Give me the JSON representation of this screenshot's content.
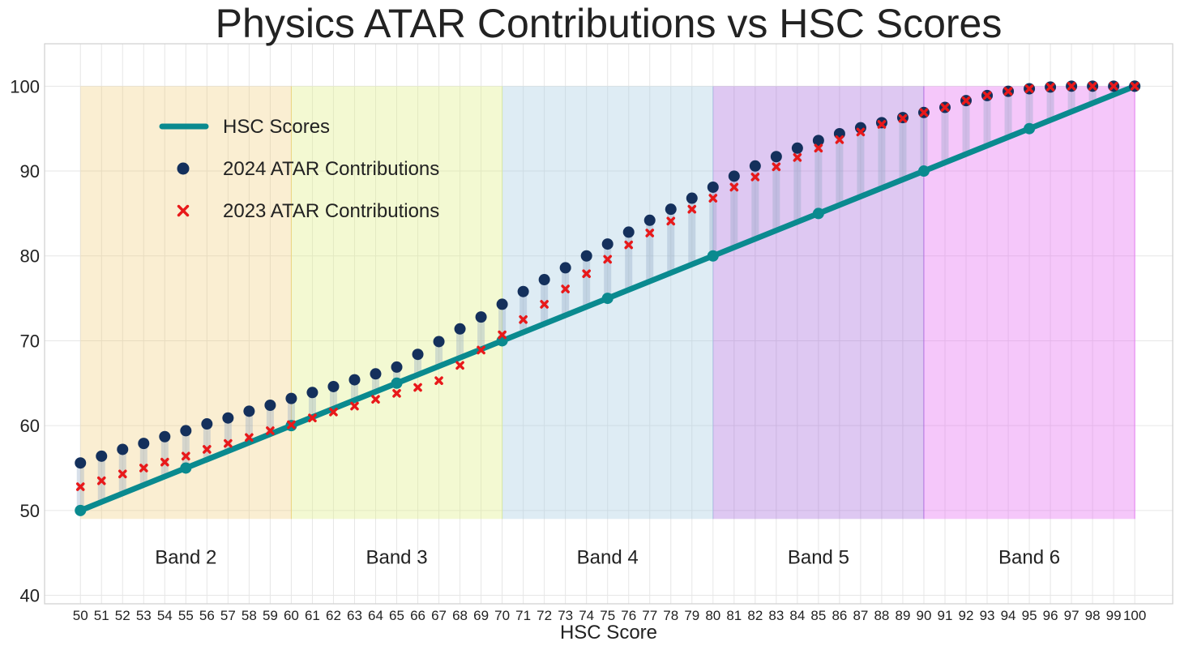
{
  "chart_data": {
    "type": "scatter",
    "title": "Physics ATAR Contributions vs HSC Scores",
    "xlabel": "HSC Score",
    "ylabel": "",
    "xlim": [
      48.3,
      101.8
    ],
    "ylim": [
      39,
      105
    ],
    "x_ticks": [
      50,
      51,
      52,
      53,
      54,
      55,
      56,
      57,
      58,
      59,
      60,
      61,
      62,
      63,
      64,
      65,
      66,
      67,
      68,
      69,
      70,
      71,
      72,
      73,
      74,
      75,
      76,
      77,
      78,
      79,
      80,
      81,
      82,
      83,
      84,
      85,
      86,
      87,
      88,
      89,
      90,
      91,
      92,
      93,
      94,
      95,
      96,
      97,
      98,
      99,
      100
    ],
    "y_ticks": [
      40,
      50,
      60,
      70,
      80,
      90,
      100
    ],
    "grid": true,
    "legend_position": "upper-left",
    "bands": [
      {
        "label": "Band 2",
        "from": 50,
        "to": 60,
        "color": "#f0c869",
        "opacity": 0.3
      },
      {
        "label": "Band 3",
        "from": 60,
        "to": 70,
        "color": "#e0f08a",
        "opacity": 0.38
      },
      {
        "label": "Band 4",
        "from": 70,
        "to": 80,
        "color": "#a8cce3",
        "opacity": 0.38
      },
      {
        "label": "Band 5",
        "from": 80,
        "to": 90,
        "color": "#9b59d9",
        "opacity": 0.33
      },
      {
        "label": "Band 6",
        "from": 90,
        "to": 100,
        "color": "#e66cf2",
        "opacity": 0.38
      }
    ],
    "band_ylim": [
      49,
      100
    ],
    "band_label_y": 44.5,
    "series": [
      {
        "name": "HSC Scores",
        "type": "line",
        "color": "#0a8a8f",
        "x": [
          50,
          100
        ],
        "y": [
          50,
          100
        ],
        "markers_x": [
          50,
          55,
          60,
          65,
          70,
          75,
          80,
          85,
          90,
          95,
          100
        ],
        "markers_y": [
          50,
          55,
          60,
          65,
          70,
          75,
          80,
          85,
          90,
          95,
          100
        ]
      },
      {
        "name": "2024 ATAR Contributions",
        "type": "scatter",
        "marker": "circle",
        "color": "#14305c",
        "x": [
          50,
          51,
          52,
          53,
          54,
          55,
          56,
          57,
          58,
          59,
          60,
          61,
          62,
          63,
          64,
          65,
          66,
          67,
          68,
          69,
          70,
          71,
          72,
          73,
          74,
          75,
          76,
          77,
          78,
          79,
          80,
          81,
          82,
          83,
          84,
          85,
          86,
          87,
          88,
          89,
          90,
          91,
          92,
          93,
          94,
          95,
          96,
          97,
          98,
          99,
          100
        ],
        "y": [
          55.6,
          56.4,
          57.2,
          57.9,
          58.7,
          59.4,
          60.2,
          60.9,
          61.7,
          62.4,
          63.2,
          63.9,
          64.6,
          65.4,
          66.1,
          66.9,
          68.4,
          69.9,
          71.4,
          72.8,
          74.3,
          75.8,
          77.2,
          78.6,
          80.0,
          81.4,
          82.8,
          84.2,
          85.5,
          86.8,
          88.1,
          89.4,
          90.6,
          91.7,
          92.7,
          93.6,
          94.4,
          95.1,
          95.7,
          96.3,
          96.9,
          97.5,
          98.3,
          98.9,
          99.4,
          99.7,
          99.9,
          100.0,
          100.0,
          100.0,
          100.0
        ]
      },
      {
        "name": "2023 ATAR Contributions",
        "type": "scatter",
        "marker": "x",
        "color": "#e8191a",
        "x": [
          50,
          51,
          52,
          53,
          54,
          55,
          56,
          57,
          58,
          59,
          60,
          61,
          62,
          63,
          64,
          65,
          66,
          67,
          68,
          69,
          70,
          71,
          72,
          73,
          74,
          75,
          76,
          77,
          78,
          79,
          80,
          81,
          82,
          83,
          84,
          85,
          86,
          87,
          88,
          89,
          90,
          91,
          92,
          93,
          94,
          95,
          96,
          97,
          98,
          99,
          100
        ],
        "y": [
          52.8,
          53.5,
          54.3,
          55.0,
          55.7,
          56.4,
          57.2,
          57.9,
          58.6,
          59.4,
          60.1,
          60.9,
          61.6,
          62.3,
          63.1,
          63.8,
          64.5,
          65.3,
          67.1,
          68.9,
          70.7,
          72.5,
          74.3,
          76.1,
          77.9,
          79.6,
          81.3,
          82.7,
          84.1,
          85.5,
          86.8,
          88.1,
          89.3,
          90.5,
          91.6,
          92.7,
          93.7,
          94.6,
          95.5,
          96.2,
          96.9,
          97.5,
          98.3,
          98.9,
          99.4,
          99.7,
          99.9,
          100.0,
          100.0,
          100.0,
          100.0
        ]
      }
    ]
  }
}
